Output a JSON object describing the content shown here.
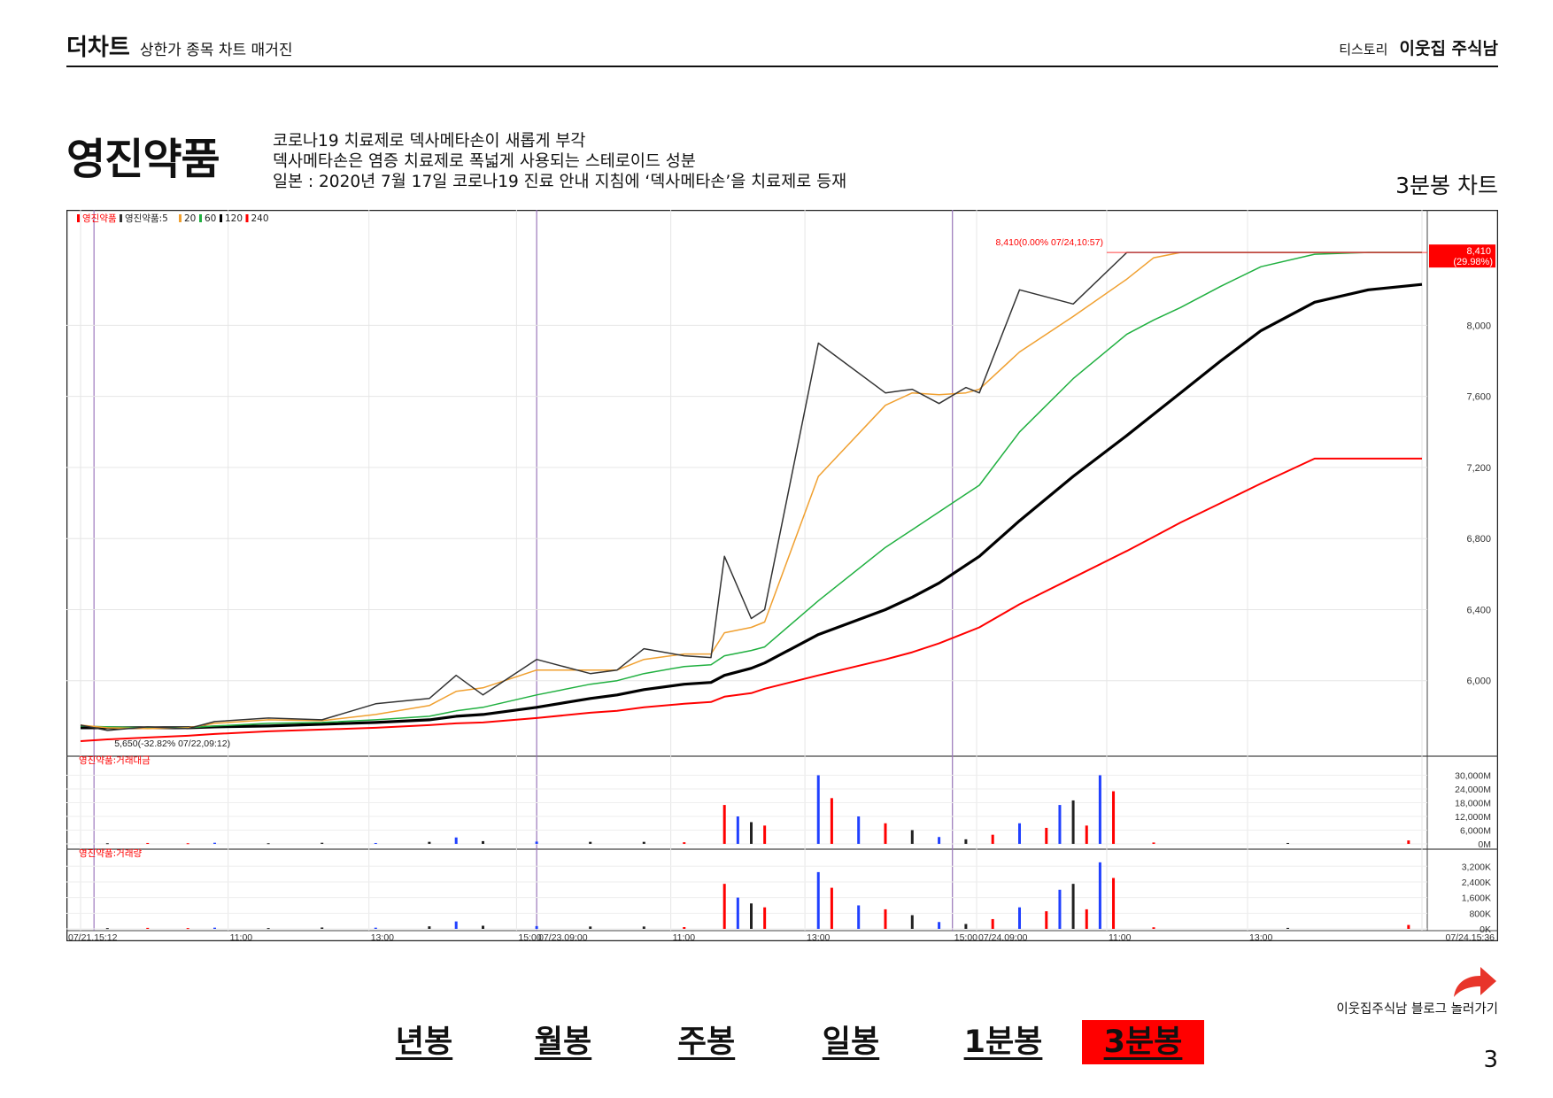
{
  "header": {
    "brand": "더차트",
    "subtitle": "상한가 종목 차트 매거진",
    "blog": "티스토리",
    "author": "이웃집 주식남"
  },
  "stock": {
    "name": "영진약품",
    "description": [
      "코로나19 치료제로 덱사메타손이 새롭게 부각",
      "덱사메타손은 염증 치료제로 폭넓게 사용되는 스테로이드 성분",
      "일본 : 2020년 7월 17일 코로나19 진료 안내 지침에 ‘덱사메타손’을 치료제로 등재"
    ],
    "chart_kind": "3분봉 차트"
  },
  "blog_link": {
    "label": "이웃집주식남 블로그 놀러가기",
    "icon": "curved-arrow-icon"
  },
  "nav": {
    "items": [
      "년봉",
      "월봉",
      "주봉",
      "일봉",
      "1분봉",
      "3분봉"
    ],
    "active": 5
  },
  "page_number": "3",
  "chart_data": {
    "type": "line",
    "title": "",
    "price_panel": {
      "legend": [
        "영진약품",
        "영진약품:5",
        "20",
        "60",
        "120",
        "240"
      ],
      "ylim": [
        5600,
        8600
      ],
      "y_ticks": [
        6000,
        6400,
        6800,
        7200,
        7600,
        8000
      ],
      "y_tick_labels": [
        "6,000",
        "6,400",
        "6,800",
        "7,200",
        "7,600",
        "8,000"
      ],
      "annotations": {
        "high": "8,410(0.00% 07/24,10:57)",
        "low": "5,650(-32.82% 07/22,09:12)",
        "last_price": "8,410",
        "last_change": "(29.98%)"
      },
      "x": [
        0,
        2,
        5,
        8,
        10,
        14,
        18,
        22,
        26,
        28,
        30,
        34,
        38,
        40,
        42,
        45,
        47,
        48,
        50,
        51,
        55,
        60,
        62,
        64,
        66,
        67,
        70,
        74,
        78,
        80,
        82,
        85,
        88,
        92,
        96,
        100
      ],
      "series": [
        {
          "name": "영진약품",
          "color": "#333333",
          "values": [
            5750,
            5720,
            5740,
            5730,
            5770,
            5790,
            5780,
            5870,
            5900,
            6030,
            5920,
            6120,
            6040,
            6060,
            6180,
            6140,
            6130,
            6700,
            6350,
            6400,
            7900,
            7620,
            7640,
            7560,
            7650,
            7620,
            8200,
            8120,
            8410,
            8410,
            8410,
            8410,
            8410,
            8410,
            8410,
            8410
          ]
        },
        {
          "name": "20",
          "color": "#f0a030",
          "values": [
            5750,
            5735,
            5730,
            5735,
            5760,
            5780,
            5775,
            5810,
            5860,
            5940,
            5960,
            6060,
            6060,
            6060,
            6120,
            6150,
            6150,
            6270,
            6300,
            6330,
            7150,
            7550,
            7620,
            7610,
            7620,
            7640,
            7850,
            8050,
            8260,
            8380,
            8410,
            8410,
            8410,
            8410,
            8410,
            8410
          ]
        },
        {
          "name": "60",
          "color": "#20b040",
          "values": [
            5745,
            5740,
            5735,
            5735,
            5745,
            5760,
            5765,
            5780,
            5800,
            5830,
            5850,
            5920,
            5980,
            6000,
            6040,
            6080,
            6090,
            6140,
            6170,
            6190,
            6450,
            6750,
            6850,
            6950,
            7050,
            7100,
            7400,
            7700,
            7950,
            8030,
            8100,
            8220,
            8330,
            8400,
            8410,
            8410
          ]
        },
        {
          "name": "120",
          "color": "#000000",
          "values": [
            5735,
            5735,
            5735,
            5735,
            5740,
            5745,
            5755,
            5765,
            5780,
            5800,
            5810,
            5850,
            5900,
            5920,
            5950,
            5980,
            5990,
            6030,
            6070,
            6100,
            6260,
            6400,
            6470,
            6550,
            6650,
            6700,
            6900,
            7150,
            7380,
            7500,
            7620,
            7800,
            7970,
            8130,
            8200,
            8230
          ]
        },
        {
          "name": "240",
          "color": "#ff0000",
          "values": [
            5660,
            5670,
            5680,
            5690,
            5700,
            5715,
            5725,
            5735,
            5750,
            5760,
            5765,
            5790,
            5820,
            5830,
            5850,
            5870,
            5880,
            5910,
            5930,
            5955,
            6030,
            6120,
            6160,
            6210,
            6270,
            6300,
            6430,
            6580,
            6730,
            6810,
            6890,
            7000,
            7110,
            7250,
            7250,
            7250
          ]
        }
      ]
    },
    "value_panel": {
      "legend": "영진약품:거래대금",
      "ylim": [
        0,
        36000
      ],
      "y_tick_labels": [
        "30,000M",
        "24,000M",
        "18,000M",
        "12,000M",
        "6,000M",
        "0M"
      ],
      "y_ticks": [
        30000,
        24000,
        18000,
        12000,
        6000,
        0
      ],
      "bars": [
        [
          2,
          300
        ],
        [
          5,
          400
        ],
        [
          8,
          300
        ],
        [
          10,
          500
        ],
        [
          14,
          300
        ],
        [
          18,
          500
        ],
        [
          22,
          400
        ],
        [
          26,
          900
        ],
        [
          28,
          2800
        ],
        [
          30,
          1200
        ],
        [
          34,
          1000
        ],
        [
          38,
          900
        ],
        [
          42,
          900
        ],
        [
          45,
          700
        ],
        [
          48,
          17000
        ],
        [
          49,
          12000
        ],
        [
          50,
          9500
        ],
        [
          51,
          8000
        ],
        [
          55,
          30000
        ],
        [
          56,
          20000
        ],
        [
          58,
          12000
        ],
        [
          60,
          9000
        ],
        [
          62,
          6000
        ],
        [
          64,
          3000
        ],
        [
          66,
          2000
        ],
        [
          68,
          4000
        ],
        [
          70,
          9000
        ],
        [
          72,
          7000
        ],
        [
          73,
          17000
        ],
        [
          74,
          19000
        ],
        [
          75,
          8000
        ],
        [
          76,
          30000
        ],
        [
          77,
          23000
        ],
        [
          80,
          600
        ],
        [
          90,
          400
        ],
        [
          99,
          1500
        ]
      ]
    },
    "volume_panel": {
      "legend": "영진약품:거래량",
      "ylim": [
        0,
        3800
      ],
      "y_tick_labels": [
        "3,200K",
        "2,400K",
        "1,600K",
        "800K",
        "0K"
      ],
      "y_ticks": [
        3200,
        2400,
        1600,
        800,
        0
      ],
      "bars": [
        [
          2,
          40
        ],
        [
          5,
          50
        ],
        [
          8,
          40
        ],
        [
          10,
          60
        ],
        [
          14,
          40
        ],
        [
          18,
          70
        ],
        [
          22,
          60
        ],
        [
          26,
          130
        ],
        [
          28,
          380
        ],
        [
          30,
          160
        ],
        [
          34,
          140
        ],
        [
          38,
          120
        ],
        [
          42,
          120
        ],
        [
          45,
          90
        ],
        [
          48,
          2300
        ],
        [
          49,
          1600
        ],
        [
          50,
          1300
        ],
        [
          51,
          1100
        ],
        [
          55,
          2900
        ],
        [
          56,
          2100
        ],
        [
          58,
          1200
        ],
        [
          60,
          1000
        ],
        [
          62,
          700
        ],
        [
          64,
          350
        ],
        [
          66,
          250
        ],
        [
          68,
          500
        ],
        [
          70,
          1100
        ],
        [
          72,
          900
        ],
        [
          73,
          2000
        ],
        [
          74,
          2300
        ],
        [
          75,
          1000
        ],
        [
          76,
          3400
        ],
        [
          77,
          2600
        ],
        [
          80,
          80
        ],
        [
          90,
          50
        ],
        [
          99,
          200
        ]
      ]
    },
    "x_axis": {
      "labels": [
        {
          "x": 0,
          "text": "07/21,15:12"
        },
        {
          "x": 11,
          "text": "11:00"
        },
        {
          "x": 21.5,
          "text": "13:00"
        },
        {
          "x": 32.5,
          "text": "15:00"
        },
        {
          "x": 34,
          "text": "07/23,09:00"
        },
        {
          "x": 44,
          "text": "11:00"
        },
        {
          "x": 54,
          "text": "13:00"
        },
        {
          "x": 65,
          "text": "15:00"
        },
        {
          "x": 66.8,
          "text": "07/24,09:00"
        },
        {
          "x": 76.5,
          "text": "11:00"
        },
        {
          "x": 87,
          "text": "13:00"
        },
        {
          "x": 100,
          "text": "07/24,15:36"
        }
      ],
      "day_separators": [
        1,
        34,
        65
      ]
    },
    "grid": true
  }
}
